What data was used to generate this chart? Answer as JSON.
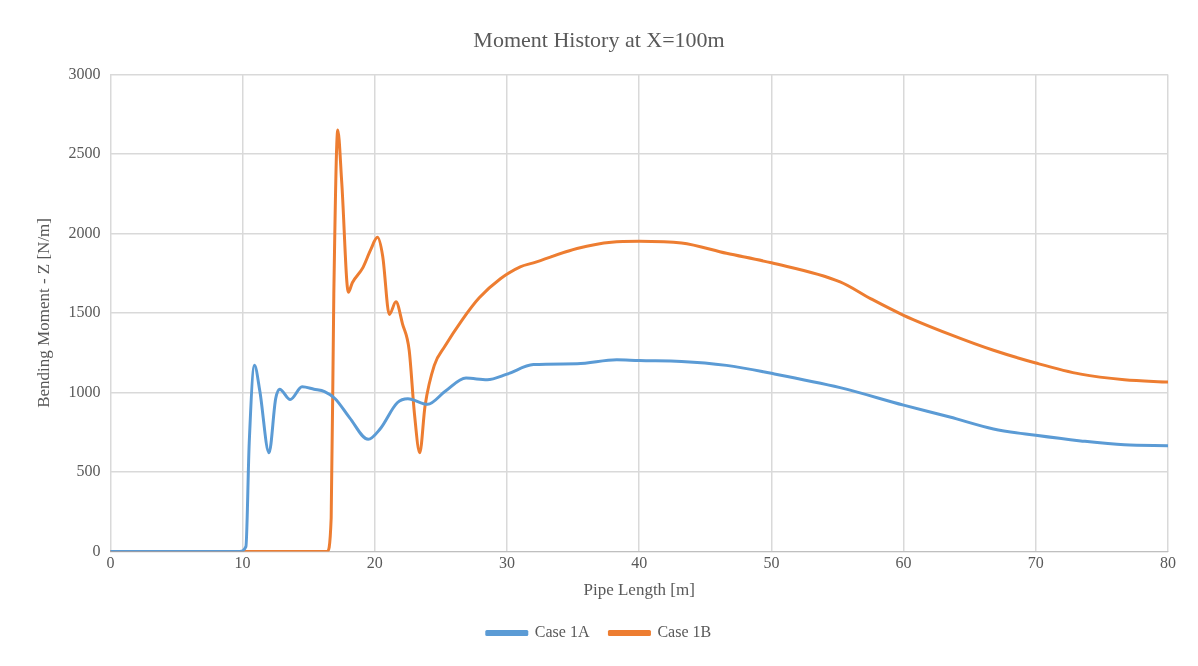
{
  "chart_data": {
    "type": "line",
    "title": "Moment History at X=100m",
    "xlabel": "Pipe Length [m]",
    "ylabel": "Bending Moment - Z [N/m]",
    "xlim": [
      0,
      80
    ],
    "xticks": [
      0,
      10,
      20,
      30,
      40,
      50,
      60,
      70,
      80
    ],
    "ylim": [
      0,
      3000
    ],
    "yticks": [
      0,
      500,
      1000,
      1500,
      2000,
      2500,
      3000
    ],
    "grid": true,
    "legend": "bottom",
    "marker": "none",
    "line_style": "solid",
    "series": [
      {
        "name": "Case 1A",
        "color": "#5b9bd5",
        "x": [
          0,
          9.8,
          10.25,
          10.5,
          10.9,
          11.3,
          12.0,
          12.5,
          12.8,
          13.6,
          14.5,
          15.4,
          16.2,
          17.0,
          18.1,
          19.5,
          20.4,
          21.7,
          22.5,
          24.0,
          25.3,
          26.9,
          28.5,
          30,
          32,
          35.3,
          38.3,
          40,
          43.2,
          46.6,
          50,
          55.2,
          60,
          63.5,
          66.8,
          70,
          73.4,
          76.7,
          80
        ],
        "values": [
          0,
          0,
          30,
          680,
          1170,
          1010,
          620,
          960,
          1020,
          955,
          1035,
          1020,
          1005,
          960,
          840,
          705,
          770,
          935,
          960,
          925,
          1005,
          1090,
          1080,
          1115,
          1175,
          1180,
          1205,
          1200,
          1195,
          1170,
          1120,
          1030,
          920,
          845,
          770,
          730,
          695,
          670,
          665
        ]
      },
      {
        "name": "Case 1B",
        "color": "#ed7d31",
        "x": [
          0,
          16.4,
          16.7,
          16.9,
          17.2,
          17.5,
          18.0,
          18.3,
          19.1,
          19.7,
          20.2,
          20.6,
          21.1,
          21.6,
          22.1,
          22.6,
          23.0,
          23.4,
          23.8,
          24.5,
          25.3,
          26.6,
          27.9,
          29.5,
          31,
          32,
          35.3,
          37.9,
          40,
          43.2,
          46.6,
          50,
          55.2,
          57.5,
          60,
          63.5,
          66.8,
          70,
          73.4,
          76.7,
          80
        ],
        "values": [
          0,
          0,
          210,
          1620,
          2650,
          2320,
          1630,
          1690,
          1785,
          1900,
          1975,
          1855,
          1490,
          1570,
          1430,
          1265,
          865,
          620,
          915,
          1170,
          1290,
          1455,
          1595,
          1715,
          1790,
          1815,
          1905,
          1945,
          1950,
          1940,
          1875,
          1815,
          1695,
          1590,
          1485,
          1365,
          1265,
          1185,
          1115,
          1080,
          1065
        ]
      }
    ]
  }
}
